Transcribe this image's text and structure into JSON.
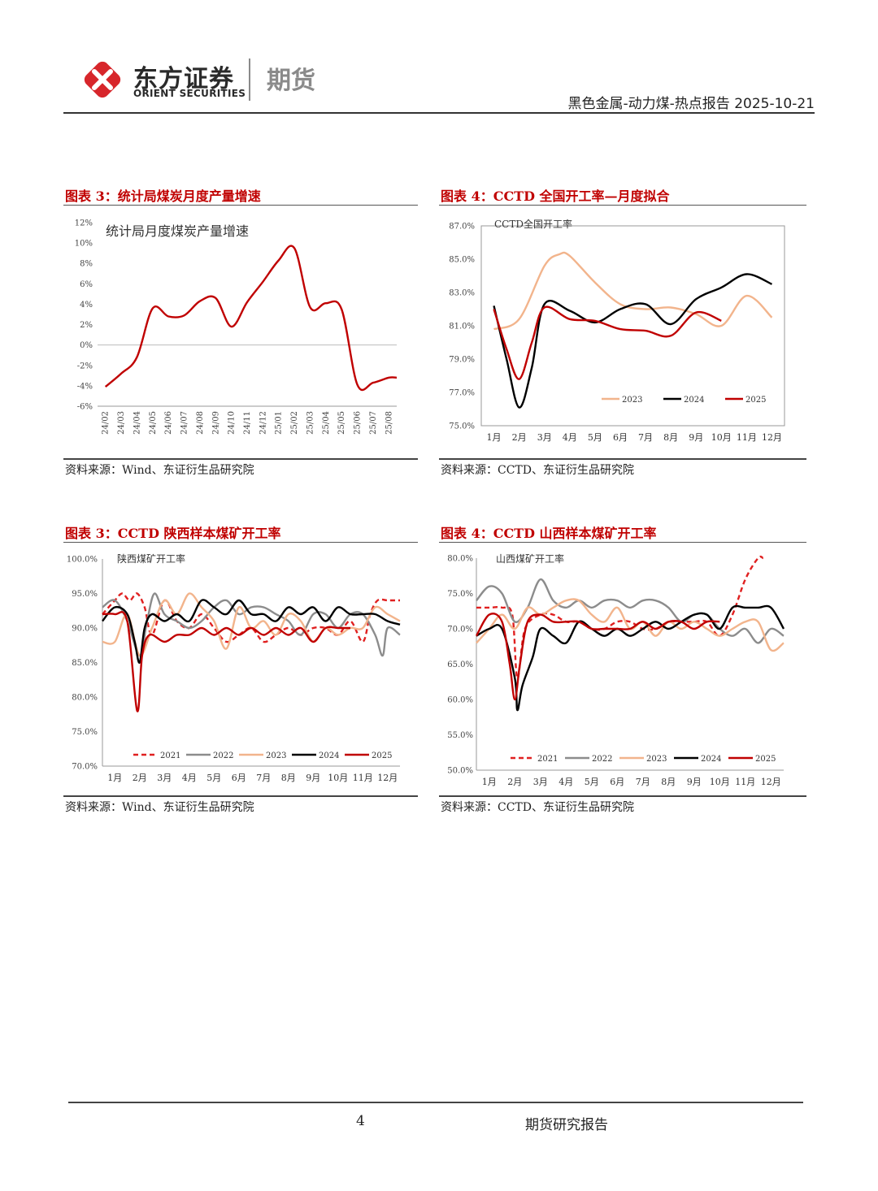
{
  "header": {
    "brand_cn": "东方证券",
    "brand_en": "ORIENT SECURITIES",
    "brand_sub": "期货",
    "report_title": "黑色金属-动力煤-热点报告 2025-10-21",
    "colors": {
      "brand_red": "#d7262b",
      "gray": "#8a8a8a"
    }
  },
  "figures": [
    {
      "title": "图表 3：统计局煤炭月度产量增速",
      "source": "资料来源：Wind、东证衍生品研究院"
    },
    {
      "title": "图表 4：CCTD 全国开工率—月度拟合",
      "source": "资料来源：CCTD、东证衍生品研究院"
    },
    {
      "title": "图表 3：CCTD 陕西样本煤矿开工率",
      "source": "资料来源：Wind、东证衍生品研究院"
    },
    {
      "title": "图表 4：CCTD 山西样本煤矿开工率",
      "source": "资料来源：CCTD、东证衍生品研究院"
    }
  ],
  "footer": {
    "page_number": "4",
    "label": "期货研究报告"
  },
  "chart_data": [
    {
      "type": "line",
      "title": "统计局月度煤炭产量增速",
      "categories": [
        "24/02",
        "24/03",
        "24/04",
        "24/05",
        "24/06",
        "24/07",
        "24/08",
        "24/09",
        "24/10",
        "24/11",
        "24/12",
        "25/01",
        "25/02",
        "25/03",
        "25/04",
        "25/05",
        "25/06",
        "25/07",
        "25/08"
      ],
      "series": [
        {
          "name": "统计局月度煤炭产量增速",
          "color": "#c00000",
          "x": [
            1,
            2,
            3,
            4,
            5,
            6,
            7,
            8,
            9,
            10,
            11,
            12,
            13,
            14,
            15,
            16,
            17,
            18,
            19,
            19.5
          ],
          "values": [
            -4.1,
            -2.8,
            -1.2,
            3.6,
            2.8,
            2.9,
            4.3,
            4.6,
            1.8,
            4.2,
            6.2,
            8.3,
            9.5,
            3.7,
            4.1,
            3.5,
            -3.9,
            -3.7,
            -3.2,
            -3.2
          ]
        }
      ],
      "ytick_labels": [
        "12%",
        "10%",
        "8%",
        "6%",
        "4%",
        "2%",
        "0%",
        "-2%",
        "-4%",
        "-6%"
      ],
      "ylim": [
        -6,
        12
      ],
      "xlim": [
        0.5,
        19.5
      ]
    },
    {
      "type": "line",
      "title": "CCTD全国开工率",
      "categories": [
        "1月",
        "2月",
        "3月",
        "4月",
        "5月",
        "6月",
        "7月",
        "8月",
        "9月",
        "10月",
        "11月",
        "12月"
      ],
      "series": [
        {
          "name": "2023",
          "color": "#f2b48c",
          "x": [
            1,
            2,
            3,
            3.6,
            4,
            5,
            6,
            7,
            8,
            9,
            10,
            11,
            12
          ],
          "values": [
            80.8,
            81.4,
            84.6,
            85.3,
            85.2,
            83.6,
            82.3,
            82.0,
            82.1,
            81.7,
            81.0,
            82.8,
            81.5
          ]
        },
        {
          "name": "2024",
          "color": "#000000",
          "x": [
            1,
            1.5,
            2,
            2.5,
            3,
            4,
            5,
            6,
            7,
            8,
            9,
            10,
            11,
            12
          ],
          "values": [
            82.2,
            79.0,
            76.1,
            78.5,
            82.3,
            81.9,
            81.2,
            82.0,
            82.3,
            81.1,
            82.6,
            83.3,
            84.1,
            83.5
          ]
        },
        {
          "name": "2025",
          "color": "#c00000",
          "x": [
            1,
            1.5,
            2,
            2.5,
            3,
            4,
            5,
            6,
            7,
            8,
            9,
            10
          ],
          "values": [
            82.0,
            79.6,
            77.8,
            80.0,
            82.1,
            81.4,
            81.3,
            80.8,
            80.7,
            80.4,
            81.8,
            81.3
          ]
        }
      ],
      "ytick_labels": [
        "87.0%",
        "85.0%",
        "83.0%",
        "81.0%",
        "79.0%",
        "77.0%",
        "75.0%"
      ],
      "ylim": [
        75,
        87
      ],
      "xlim": [
        0.5,
        12.5
      ]
    },
    {
      "type": "line",
      "title": "陕西煤矿开工率",
      "categories": [
        "1月",
        "2月",
        "3月",
        "4月",
        "5月",
        "6月",
        "7月",
        "8月",
        "9月",
        "10月",
        "11月",
        "12月"
      ],
      "series": [
        {
          "name": "2021",
          "color": "#e02020",
          "dash": true,
          "x": [
            0.5,
            1,
            1.3,
            1.6,
            1.9,
            2.2,
            2.5,
            3,
            3.5,
            4,
            4.5,
            5,
            5.5,
            6,
            6.5,
            7,
            7.5,
            8,
            8.5,
            9,
            9.5,
            10,
            10.5,
            11,
            11.3,
            11.6,
            12,
            12.5
          ],
          "values": [
            92,
            94,
            95,
            94,
            95,
            93,
            89,
            94,
            91,
            90,
            92,
            90,
            88,
            89,
            90,
            88,
            89,
            90,
            89,
            90,
            90,
            89,
            91,
            88,
            92,
            94,
            94,
            94
          ]
        },
        {
          "name": "2022",
          "color": "#8c8c8c",
          "x": [
            0.5,
            1,
            1.5,
            2,
            2.3,
            2.6,
            3,
            3.5,
            4,
            4.5,
            5,
            5.5,
            6,
            6.5,
            7,
            7.5,
            8,
            8.5,
            9,
            9.5,
            10,
            10.5,
            11,
            11.5,
            11.8,
            12,
            12.5
          ],
          "values": [
            93,
            94,
            91,
            86,
            91,
            95,
            92,
            91,
            90,
            91,
            93,
            94,
            92,
            93,
            93,
            92,
            91,
            89,
            92,
            92,
            90,
            92,
            92,
            89,
            86,
            90,
            89
          ]
        },
        {
          "name": "2023",
          "color": "#f2b48c",
          "x": [
            0.5,
            1,
            1.5,
            2,
            2.5,
            3,
            3.5,
            4,
            4.5,
            5,
            5.5,
            6,
            6.5,
            7,
            7.5,
            8,
            8.5,
            9,
            9.5,
            10,
            10.5,
            11,
            11.5,
            12,
            12.5
          ],
          "values": [
            88,
            88,
            92,
            86,
            90,
            94,
            92,
            95,
            93,
            91,
            87,
            93,
            90,
            91,
            89,
            92,
            91,
            88,
            90,
            89,
            90,
            90,
            93,
            92,
            91
          ]
        },
        {
          "name": "2024",
          "color": "#000000",
          "x": [
            0.5,
            1,
            1.5,
            1.8,
            2,
            2.2,
            2.5,
            3,
            3.5,
            4,
            4.5,
            5,
            5.5,
            6,
            6.5,
            7,
            7.5,
            8,
            8.5,
            9,
            9.5,
            10,
            10.5,
            11,
            11.5,
            12,
            12.5
          ],
          "values": [
            91,
            93,
            92,
            88,
            85,
            90,
            92,
            91,
            92,
            91,
            94,
            93,
            92,
            94,
            92,
            92,
            91,
            93,
            92,
            93,
            91,
            93,
            92,
            92,
            92,
            91,
            90.5
          ]
        },
        {
          "name": "2025",
          "color": "#c00000",
          "x": [
            0.5,
            1,
            1.5,
            1.9,
            2.1,
            2.4,
            3,
            3.5,
            4,
            4.5,
            5,
            5.5,
            6,
            6.5,
            7,
            7.5,
            8,
            8.5,
            9,
            9.5,
            10,
            10.5
          ],
          "values": [
            92,
            92,
            91,
            78,
            86,
            89,
            88,
            89,
            89,
            90,
            89,
            90,
            89,
            90,
            89,
            90,
            89,
            90,
            88,
            90,
            90,
            90
          ]
        }
      ],
      "ytick_labels": [
        "100.0%",
        "95.0%",
        "90.0%",
        "85.0%",
        "80.0%",
        "75.0%",
        "70.0%"
      ],
      "ylim": [
        70,
        100
      ],
      "xlim": [
        0.5,
        12.5
      ]
    },
    {
      "type": "line",
      "title": "山西煤矿开工率",
      "categories": [
        "1月",
        "2月",
        "3月",
        "4月",
        "5月",
        "6月",
        "7月",
        "8月",
        "9月",
        "10月",
        "11月",
        "12月"
      ],
      "series": [
        {
          "name": "2021",
          "color": "#e02020",
          "dash": true,
          "x": [
            0.5,
            1,
            1.5,
            1.9,
            2.1,
            2.4,
            3,
            3.5,
            4,
            4.5,
            5,
            5.5,
            6,
            6.5,
            7,
            7.5,
            8,
            8.5,
            9,
            9.5,
            10,
            10.5,
            11,
            11.5,
            11.7
          ],
          "values": [
            73,
            73,
            73,
            72,
            63,
            70,
            72,
            72,
            71,
            71,
            70,
            70,
            71,
            71,
            70,
            70,
            71,
            71,
            71,
            71,
            69,
            72,
            77,
            80,
            80
          ]
        },
        {
          "name": "2022",
          "color": "#8c8c8c",
          "x": [
            0.5,
            1,
            1.5,
            2,
            2.5,
            3,
            3.5,
            4,
            4.5,
            5,
            5.5,
            6,
            6.5,
            7,
            7.5,
            8,
            8.5,
            9,
            9.5,
            10,
            10.5,
            11,
            11.5,
            12,
            12.5
          ],
          "values": [
            74,
            76,
            75,
            71,
            73,
            77,
            74,
            73,
            74,
            73,
            74,
            74,
            73,
            74,
            74,
            73,
            71,
            72,
            72,
            70,
            69,
            70,
            68,
            70,
            69
          ]
        },
        {
          "name": "2023",
          "color": "#f2b48c",
          "x": [
            0.5,
            1,
            1.5,
            2,
            2.5,
            3,
            3.5,
            4,
            4.5,
            5,
            5.5,
            6,
            6.5,
            7,
            7.5,
            8,
            8.5,
            9,
            9.5,
            10,
            10.5,
            11,
            11.5,
            12,
            12.5
          ],
          "values": [
            68,
            70,
            72,
            70,
            73,
            72,
            73,
            74,
            74,
            72,
            71,
            73,
            70,
            71,
            69,
            71,
            70,
            71,
            70,
            69,
            70,
            71,
            71,
            67,
            68
          ]
        },
        {
          "name": "2024",
          "color": "#000000",
          "x": [
            0.5,
            1,
            1.5,
            2,
            2.1,
            2.3,
            2.7,
            3,
            3.5,
            4,
            4.5,
            5,
            5.5,
            6,
            6.5,
            7,
            7.5,
            8,
            8.5,
            9,
            9.5,
            10,
            10.5,
            11,
            11.5,
            12,
            12.5
          ],
          "values": [
            69,
            70,
            70,
            63,
            58.5,
            62,
            66,
            70,
            69,
            68,
            71,
            70,
            69,
            70,
            69,
            70,
            71,
            70,
            71,
            72,
            72,
            70,
            73,
            73,
            73,
            73,
            70
          ]
        },
        {
          "name": "2025",
          "color": "#c00000",
          "x": [
            0.5,
            1,
            1.5,
            1.8,
            2,
            2.2,
            2.5,
            3,
            3.5,
            4,
            4.5,
            5,
            5.5,
            6,
            6.5,
            7,
            7.5,
            8,
            8.5,
            9,
            9.5,
            10
          ],
          "values": [
            69,
            72,
            71,
            65,
            60,
            65,
            71,
            72,
            71,
            71,
            71,
            70,
            70,
            70,
            70,
            71,
            70,
            71,
            71,
            70,
            71,
            71
          ]
        }
      ],
      "ytick_labels": [
        "80.0%",
        "75.0%",
        "70.0%",
        "65.0%",
        "60.0%",
        "55.0%",
        "50.0%"
      ],
      "ylim": [
        50,
        80
      ],
      "xlim": [
        0.5,
        12.5
      ]
    }
  ]
}
